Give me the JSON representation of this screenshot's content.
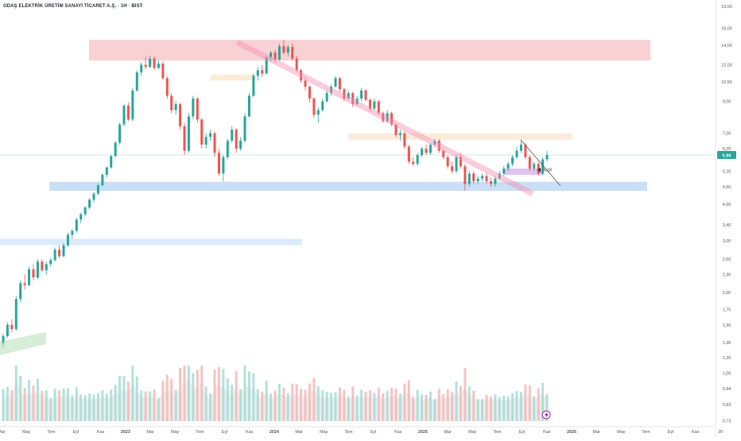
{
  "chart_data": {
    "type": "candlestick",
    "title": "ODAŞ ELEKTRİK ÜRETİM SANAYİ TİCARET A.Ş. · 1H · BIST",
    "y_scale": "log",
    "ylim": [
      0.7,
      19.0
    ],
    "price_ticks": [
      "19,00",
      "16,00",
      "14,00",
      "12,00",
      "10,50",
      "9,00",
      "7,00",
      "6,20",
      "5,90",
      "5,20",
      "4,60",
      "4,00",
      "3,40",
      "3,00",
      "2,60",
      "2,30",
      "2,00",
      "1,75",
      "1,55",
      "1,35",
      "1,20",
      "1,06",
      "0,94",
      "0,83",
      "0,73"
    ],
    "last_price": "5,90",
    "x_ticks": [
      "Mar",
      "May",
      "Tem",
      "Eyl",
      "Kas",
      "2023",
      "Mar",
      "May",
      "Tem",
      "Eyl",
      "Kas",
      "2024",
      "Mar",
      "May",
      "Tem",
      "Eyl",
      "Kas",
      "2025",
      "Mar",
      "May",
      "Tem",
      "Eyl",
      "Kas",
      "2026",
      "Mar",
      "May",
      "Tem",
      "Eyl",
      "Kas",
      "20"
    ],
    "accent_up": "#26a69a",
    "accent_down": "#ef5350",
    "annotation_label": "6,18",
    "zones": [
      {
        "kind": "resistance",
        "price_low": 12.4,
        "price_high": 14.6,
        "color": "#f8c9cc"
      },
      {
        "kind": "support",
        "price_low": 4.45,
        "price_high": 4.78,
        "color": "#bfd9f5"
      },
      {
        "kind": "support",
        "price_low": 2.9,
        "price_high": 3.05,
        "color": "#d6e8fb"
      },
      {
        "kind": "minor",
        "price_low": 6.65,
        "price_high": 7.0,
        "color": "#fde7d4"
      },
      {
        "kind": "minor",
        "price_low": 10.6,
        "price_high": 11.1,
        "color": "#fde7d4"
      },
      {
        "kind": "target",
        "price_low": 5.05,
        "price_high": 5.3,
        "color": "#d9b6ef"
      }
    ],
    "candles": [
      [
        1.34,
        1.45,
        1.3,
        1.42
      ],
      [
        1.42,
        1.58,
        1.4,
        1.55
      ],
      [
        1.55,
        1.62,
        1.46,
        1.5
      ],
      [
        1.5,
        1.95,
        1.48,
        1.9
      ],
      [
        1.9,
        2.2,
        1.85,
        2.15
      ],
      [
        2.15,
        2.3,
        2.05,
        2.12
      ],
      [
        2.12,
        2.45,
        2.1,
        2.4
      ],
      [
        2.4,
        2.5,
        2.2,
        2.25
      ],
      [
        2.25,
        2.6,
        2.22,
        2.55
      ],
      [
        2.55,
        2.6,
        2.35,
        2.38
      ],
      [
        2.38,
        2.55,
        2.3,
        2.5
      ],
      [
        2.5,
        2.62,
        2.45,
        2.58
      ],
      [
        2.58,
        2.85,
        2.55,
        2.8
      ],
      [
        2.8,
        2.9,
        2.62,
        2.66
      ],
      [
        2.66,
        2.95,
        2.64,
        2.9
      ],
      [
        2.9,
        3.2,
        2.86,
        3.15
      ],
      [
        3.15,
        3.3,
        3.05,
        3.25
      ],
      [
        3.25,
        3.6,
        3.2,
        3.55
      ],
      [
        3.55,
        3.75,
        3.45,
        3.7
      ],
      [
        3.7,
        3.95,
        3.65,
        3.9
      ],
      [
        3.9,
        4.2,
        3.85,
        4.15
      ],
      [
        4.15,
        4.4,
        4.05,
        4.35
      ],
      [
        4.35,
        4.7,
        4.3,
        4.65
      ],
      [
        4.65,
        5.1,
        4.6,
        5.05
      ],
      [
        5.05,
        5.4,
        4.95,
        5.35
      ],
      [
        5.35,
        5.9,
        5.3,
        5.85
      ],
      [
        5.85,
        6.6,
        5.8,
        6.5
      ],
      [
        6.5,
        7.6,
        6.4,
        7.5
      ],
      [
        7.5,
        8.8,
        7.4,
        8.7
      ],
      [
        8.7,
        8.9,
        7.7,
        7.8
      ],
      [
        7.8,
        10.0,
        7.7,
        9.8
      ],
      [
        9.8,
        11.5,
        9.7,
        11.3
      ],
      [
        11.3,
        12.2,
        11.0,
        12.0
      ],
      [
        12.0,
        12.8,
        11.6,
        11.8
      ],
      [
        11.8,
        12.9,
        11.7,
        12.6
      ],
      [
        12.6,
        12.8,
        11.5,
        11.7
      ],
      [
        11.7,
        12.4,
        11.6,
        12.1
      ],
      [
        12.1,
        12.3,
        10.6,
        10.8
      ],
      [
        10.8,
        11.0,
        9.2,
        9.4
      ],
      [
        9.4,
        9.6,
        8.2,
        8.4
      ],
      [
        8.4,
        9.0,
        8.1,
        8.8
      ],
      [
        8.8,
        8.9,
        7.2,
        7.4
      ],
      [
        7.4,
        7.6,
        5.9,
        6.1
      ],
      [
        6.1,
        8.2,
        6.0,
        8.0
      ],
      [
        8.0,
        9.4,
        7.8,
        9.2
      ],
      [
        9.2,
        9.3,
        7.6,
        7.8
      ],
      [
        7.8,
        7.9,
        6.2,
        6.4
      ],
      [
        6.4,
        7.0,
        6.2,
        6.8
      ],
      [
        6.8,
        7.2,
        6.6,
        7.0
      ],
      [
        7.0,
        7.1,
        5.8,
        6.0
      ],
      [
        6.0,
        6.2,
        5.0,
        5.1
      ],
      [
        5.1,
        5.9,
        4.8,
        5.8
      ],
      [
        5.8,
        6.7,
        5.7,
        6.6
      ],
      [
        6.6,
        7.4,
        6.5,
        7.2
      ],
      [
        7.2,
        7.3,
        6.0,
        6.2
      ],
      [
        6.2,
        6.8,
        6.1,
        6.6
      ],
      [
        6.6,
        8.2,
        6.5,
        8.0
      ],
      [
        8.0,
        9.6,
        7.9,
        9.4
      ],
      [
        9.4,
        11.2,
        9.3,
        11.0
      ],
      [
        11.0,
        11.8,
        10.6,
        11.5
      ],
      [
        11.5,
        12.0,
        10.9,
        11.2
      ],
      [
        11.2,
        12.9,
        11.1,
        12.7
      ],
      [
        12.7,
        13.4,
        12.3,
        13.2
      ],
      [
        13.2,
        13.5,
        12.2,
        12.5
      ],
      [
        12.5,
        14.2,
        12.4,
        13.9
      ],
      [
        13.9,
        14.6,
        13.0,
        13.2
      ],
      [
        13.2,
        14.0,
        12.8,
        13.8
      ],
      [
        13.8,
        14.2,
        12.4,
        12.6
      ],
      [
        12.6,
        12.9,
        11.3,
        11.5
      ],
      [
        11.5,
        11.6,
        10.4,
        10.6
      ],
      [
        10.6,
        10.9,
        9.8,
        10.1
      ],
      [
        10.1,
        10.2,
        8.9,
        9.2
      ],
      [
        9.2,
        9.3,
        7.9,
        8.1
      ],
      [
        8.1,
        8.6,
        7.6,
        8.4
      ],
      [
        8.4,
        9.2,
        8.3,
        9.0
      ],
      [
        9.0,
        9.8,
        8.9,
        9.6
      ],
      [
        9.6,
        10.3,
        9.4,
        10.1
      ],
      [
        10.1,
        11.0,
        10.0,
        10.8
      ],
      [
        10.8,
        10.9,
        9.7,
        9.9
      ],
      [
        9.9,
        10.0,
        9.0,
        9.2
      ],
      [
        9.2,
        9.8,
        9.1,
        9.6
      ],
      [
        9.6,
        9.7,
        8.6,
        8.8
      ],
      [
        8.8,
        9.4,
        8.7,
        9.2
      ],
      [
        9.2,
        10.0,
        9.0,
        9.8
      ],
      [
        9.8,
        9.9,
        9.0,
        9.1
      ],
      [
        9.1,
        9.2,
        8.3,
        8.5
      ],
      [
        8.5,
        9.2,
        8.4,
        9.0
      ],
      [
        9.0,
        9.1,
        8.1,
        8.2
      ],
      [
        8.2,
        8.3,
        7.6,
        7.7
      ],
      [
        7.7,
        8.4,
        7.6,
        8.2
      ],
      [
        8.2,
        8.3,
        7.4,
        7.5
      ],
      [
        7.5,
        7.6,
        6.8,
        6.9
      ],
      [
        6.9,
        7.2,
        6.6,
        7.0
      ],
      [
        7.0,
        7.1,
        6.2,
        6.3
      ],
      [
        6.3,
        6.4,
        5.5,
        5.6
      ],
      [
        5.6,
        5.8,
        5.4,
        5.5
      ],
      [
        5.5,
        6.0,
        5.4,
        5.9
      ],
      [
        5.9,
        6.3,
        5.8,
        6.2
      ],
      [
        6.2,
        6.4,
        5.9,
        6.0
      ],
      [
        6.0,
        6.5,
        5.9,
        6.4
      ],
      [
        6.4,
        6.7,
        6.3,
        6.6
      ],
      [
        6.6,
        6.7,
        6.0,
        6.1
      ],
      [
        6.1,
        6.2,
        5.7,
        5.8
      ],
      [
        5.8,
        5.9,
        5.3,
        5.4
      ],
      [
        5.4,
        5.6,
        5.1,
        5.2
      ],
      [
        5.2,
        5.9,
        5.1,
        5.8
      ],
      [
        5.8,
        6.0,
        5.3,
        5.4
      ],
      [
        5.4,
        5.5,
        4.45,
        4.7
      ],
      [
        4.7,
        5.2,
        4.6,
        5.1
      ],
      [
        5.1,
        5.2,
        4.7,
        4.8
      ],
      [
        4.8,
        5.0,
        4.7,
        4.9
      ],
      [
        4.9,
        5.1,
        4.8,
        5.0
      ],
      [
        5.0,
        5.1,
        4.7,
        4.8
      ],
      [
        4.8,
        4.95,
        4.6,
        4.7
      ],
      [
        4.7,
        5.0,
        4.6,
        4.9
      ],
      [
        4.9,
        5.2,
        4.85,
        5.1
      ],
      [
        5.1,
        5.4,
        5.0,
        5.3
      ],
      [
        5.3,
        5.6,
        5.2,
        5.5
      ],
      [
        5.5,
        5.9,
        5.4,
        5.8
      ],
      [
        5.8,
        6.3,
        5.7,
        6.1
      ],
      [
        6.1,
        6.6,
        6.0,
        6.4
      ],
      [
        6.4,
        6.5,
        5.7,
        5.8
      ],
      [
        5.8,
        5.9,
        5.2,
        5.3
      ],
      [
        5.3,
        5.6,
        5.2,
        5.5
      ],
      [
        5.5,
        5.6,
        5.0,
        5.1
      ],
      [
        5.1,
        5.8,
        5.05,
        5.7
      ],
      [
        5.7,
        6.1,
        5.6,
        5.9
      ]
    ],
    "volume_up_color": "#9fd9d2",
    "volume_down_color": "#f5b3b3"
  }
}
